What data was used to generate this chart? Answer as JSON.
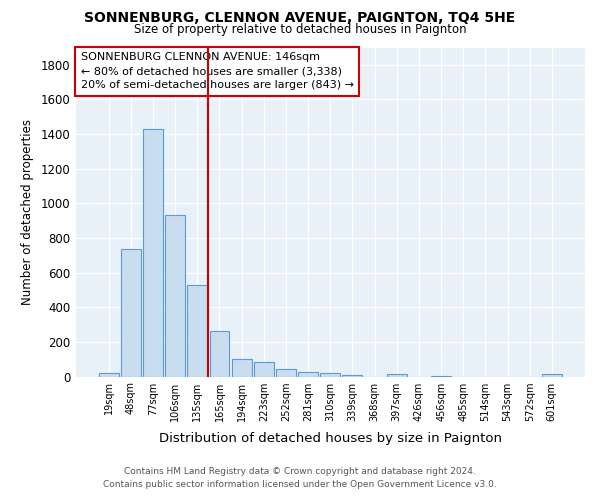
{
  "title": "SONNENBURG, CLENNON AVENUE, PAIGNTON, TQ4 5HE",
  "subtitle": "Size of property relative to detached houses in Paignton",
  "xlabel": "Distribution of detached houses by size in Paignton",
  "ylabel": "Number of detached properties",
  "footer_line1": "Contains HM Land Registry data © Crown copyright and database right 2024.",
  "footer_line2": "Contains public sector information licensed under the Open Government Licence v3.0.",
  "bar_labels": [
    "19sqm",
    "48sqm",
    "77sqm",
    "106sqm",
    "135sqm",
    "165sqm",
    "194sqm",
    "223sqm",
    "252sqm",
    "281sqm",
    "310sqm",
    "339sqm",
    "368sqm",
    "397sqm",
    "426sqm",
    "456sqm",
    "485sqm",
    "514sqm",
    "543sqm",
    "572sqm",
    "601sqm"
  ],
  "bar_values": [
    20,
    737,
    1430,
    935,
    530,
    263,
    103,
    85,
    45,
    27,
    20,
    8,
    0,
    14,
    0,
    5,
    0,
    0,
    0,
    0,
    13
  ],
  "bar_color_fill": "#c9ddf0",
  "bar_color_edge": "#5b9bd5",
  "background_color": "#ffffff",
  "plot_bg_color": "#e8f0f8",
  "grid_color": "#ffffff",
  "annotation_text": "SONNENBURG CLENNON AVENUE: 146sqm\n← 80% of detached houses are smaller (3,338)\n20% of semi-detached houses are larger (843) →",
  "annotation_box_color": "#ffffff",
  "annotation_box_edge": "#cc0000",
  "redline_color": "#cc0000",
  "redline_x": 4.5,
  "ylim": [
    0,
    1900
  ],
  "yticks": [
    0,
    200,
    400,
    600,
    800,
    1000,
    1200,
    1400,
    1600,
    1800
  ]
}
